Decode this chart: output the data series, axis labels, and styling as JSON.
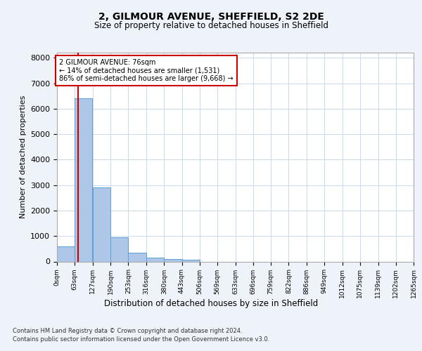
{
  "title1": "2, GILMOUR AVENUE, SHEFFIELD, S2 2DE",
  "title2": "Size of property relative to detached houses in Sheffield",
  "xlabel": "Distribution of detached houses by size in Sheffield",
  "ylabel": "Number of detached properties",
  "bins": [
    0,
    63,
    127,
    190,
    253,
    316,
    380,
    443,
    506,
    569,
    633,
    696,
    759,
    822,
    886,
    949,
    1012,
    1075,
    1139,
    1202,
    1265
  ],
  "bin_labels": [
    "0sqm",
    "63sqm",
    "127sqm",
    "190sqm",
    "253sqm",
    "316sqm",
    "380sqm",
    "443sqm",
    "506sqm",
    "569sqm",
    "633sqm",
    "696sqm",
    "759sqm",
    "822sqm",
    "886sqm",
    "949sqm",
    "1012sqm",
    "1075sqm",
    "1139sqm",
    "1202sqm",
    "1265sqm"
  ],
  "bar_values": [
    600,
    6400,
    2900,
    950,
    350,
    150,
    100,
    60,
    0,
    0,
    0,
    0,
    0,
    0,
    0,
    0,
    0,
    0,
    0,
    0
  ],
  "bar_color": "#aec6e8",
  "bar_edgecolor": "#5a9fd4",
  "property_size": 76,
  "vline_color": "#cc0000",
  "ylim": [
    0,
    8200
  ],
  "yticks": [
    0,
    1000,
    2000,
    3000,
    4000,
    5000,
    6000,
    7000,
    8000
  ],
  "annotation_text": "2 GILMOUR AVENUE: 76sqm\n← 14% of detached houses are smaller (1,531)\n86% of semi-detached houses are larger (9,668) →",
  "annotation_box_color": "#cc0000",
  "footnote1": "Contains HM Land Registry data © Crown copyright and database right 2024.",
  "footnote2": "Contains public sector information licensed under the Open Government Licence v3.0.",
  "background_color": "#eef2f9",
  "plot_background": "#ffffff"
}
